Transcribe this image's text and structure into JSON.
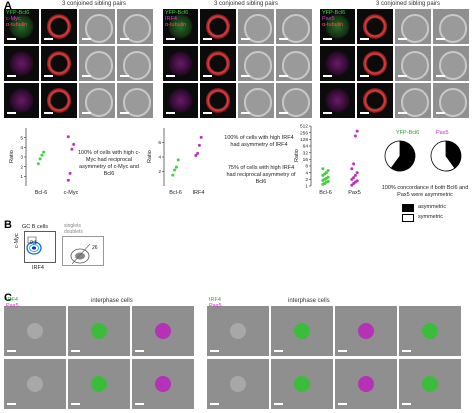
{
  "panels": {
    "A": "A",
    "B": "B",
    "C": "C"
  },
  "panel_a": {
    "pair_headers": [
      "3 conjoined sibling pairs",
      "3 conjoined sibling pairs",
      "3 conjoined sibling pairs"
    ],
    "channel_labels": [
      [
        "YFP-Bcl6",
        "c-Myc",
        "α-tubulin"
      ],
      [
        "YFP-Bcl6",
        "IRF4",
        "α-tubulin"
      ],
      [
        "YFP-Bcl6",
        "Pax5",
        "α-tubulin"
      ]
    ],
    "annotations": [
      "100% of cells with high c-Myc had reciprocal asymmetry of c-Myc and Bcl6",
      "100% of cells with high IRF4 had asymmetry of IRF4",
      "75% of cells with high IRF4 had reciprocal asymmetry of Bcl6"
    ],
    "pie_titles": [
      "YFP-Bcl6",
      "Pax5"
    ],
    "legend": {
      "asymmetric": "asymmetric",
      "symmetric": "symmetric"
    },
    "concordance_note": "100% concordance if both Bcl6 and Pax5 were asymmetric"
  },
  "chart_data": [
    {
      "type": "scatter",
      "ylabel": "Ratio",
      "categories": [
        "Bcl-6",
        "c-Myc"
      ],
      "ylim": [
        0,
        6
      ],
      "yticks": [
        "1",
        "2",
        "3",
        "4",
        "5"
      ],
      "series": [
        {
          "category": "Bcl-6",
          "values": [
            2.3,
            2.8,
            3.2,
            3.5
          ]
        },
        {
          "category": "c-Myc",
          "values": [
            0.6,
            1.3,
            3.8,
            4.3,
            5.1
          ]
        }
      ]
    },
    {
      "type": "scatter",
      "ylabel": "Ratio",
      "categories": [
        "Bcl-6",
        "IRF4"
      ],
      "ylim": [
        0,
        8
      ],
      "yticks": [
        "2",
        "4",
        "6"
      ],
      "series": [
        {
          "category": "Bcl-6",
          "values": [
            1.5,
            2.2,
            2.6,
            3.6
          ]
        },
        {
          "category": "IRF4",
          "values": [
            4.2,
            4.5,
            5.6,
            6.7
          ]
        }
      ]
    },
    {
      "type": "scatter",
      "ylabel": "Ratio",
      "categories": [
        "Bcl-6",
        "Pax5"
      ],
      "yscale": "log2",
      "yticks": [
        "1",
        "2",
        "4",
        "8",
        "16",
        "32",
        "64",
        "128",
        "256",
        "512"
      ],
      "series": [
        {
          "category": "Bcl-6",
          "values": [
            1.2,
            1.3,
            1.5,
            1.6,
            1.8,
            2,
            2.2,
            2.5,
            3,
            3.5,
            4,
            5,
            6
          ]
        },
        {
          "category": "Pax5",
          "values": [
            1.1,
            1.3,
            1.5,
            1.7,
            2,
            2.4,
            3,
            4,
            6,
            10,
            180,
            300
          ]
        }
      ]
    },
    {
      "type": "pie",
      "title": "YFP-Bcl6",
      "labels": [
        "asymmetric",
        "symmetric"
      ],
      "values": [
        60,
        40
      ]
    },
    {
      "type": "pie",
      "title": "Pax5",
      "labels": [
        "asymmetric",
        "symmetric"
      ],
      "values": [
        40,
        60
      ]
    }
  ],
  "panel_b": {
    "gate_label": "GC B cells",
    "gate_value": "0.1",
    "singlet_labels": [
      "singlets",
      "doublets"
    ],
    "singlet_value": "26",
    "y_axis": "c-Myc",
    "x_axis": "IRF4"
  },
  "panel_c": {
    "headers": [
      "interphase cells",
      "interphase cells"
    ],
    "channel_labels": [
      [
        "IRF4",
        "Pax5"
      ],
      [
        "IRF4",
        "Pax5"
      ]
    ]
  },
  "colors": {
    "green": "#3fd13f",
    "magenta": "#c030c0",
    "red": "#e04040"
  }
}
